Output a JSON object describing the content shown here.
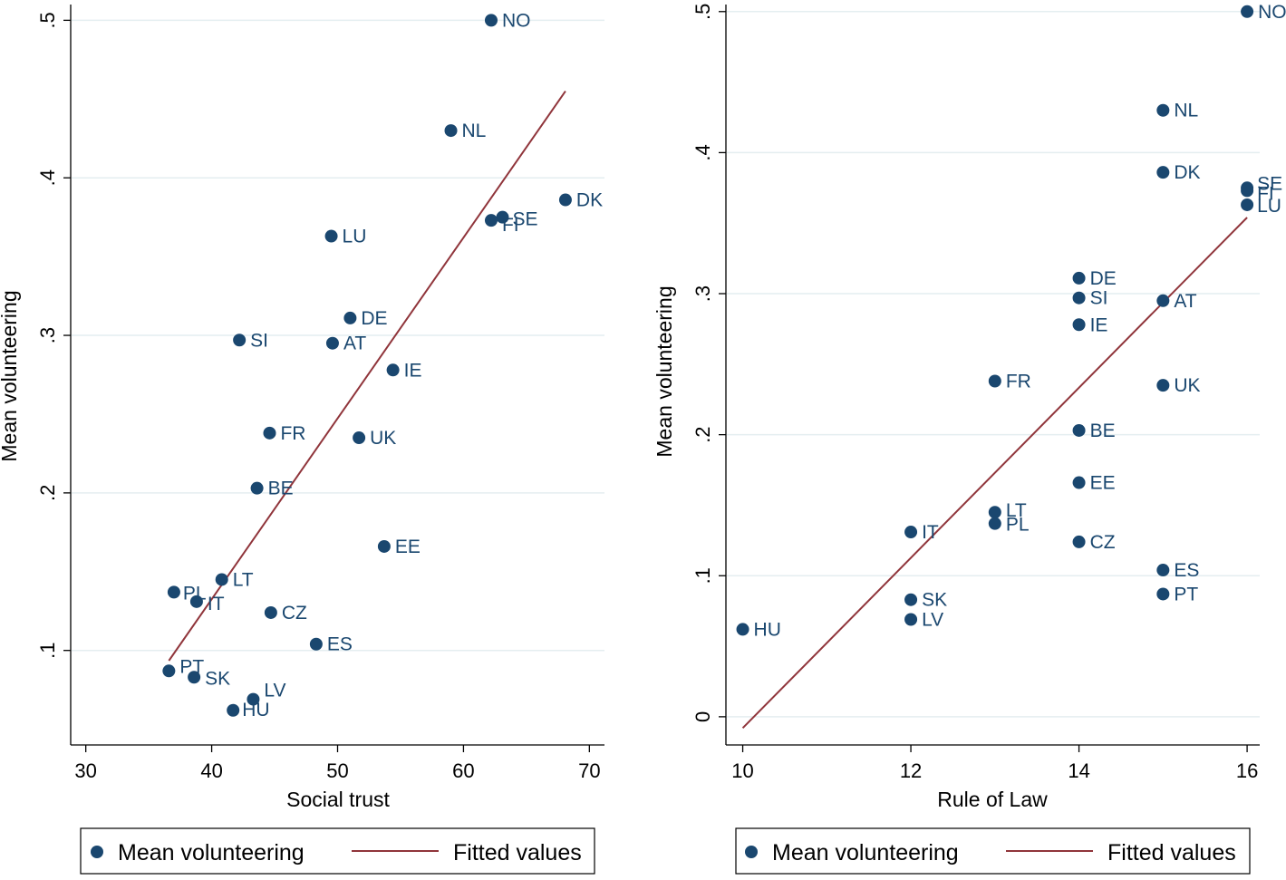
{
  "colors": {
    "marker": "#1a476f",
    "fit_line": "#90353b",
    "grid": "#e4eef0",
    "axis": "#000000",
    "text": "#000000"
  },
  "legend": {
    "markers_label": "Mean volunteering",
    "line_label": "Fitted values"
  },
  "chart_data": [
    {
      "type": "scatter",
      "title": "",
      "xlabel": "Social trust",
      "ylabel": "Mean volunteering",
      "xlim": [
        28.8,
        71.2
      ],
      "ylim": [
        0.04,
        0.51
      ],
      "xticks": [
        30,
        40,
        50,
        60,
        70
      ],
      "xtick_labels": [
        "30",
        "40",
        "50",
        "60",
        "70"
      ],
      "yticks": [
        0.1,
        0.2,
        0.3,
        0.4,
        0.5
      ],
      "ytick_labels": [
        ".1",
        ".2",
        ".3",
        ".4",
        ".5"
      ],
      "grid": true,
      "points": [
        {
          "label": "NO",
          "x": 62.2,
          "y": 0.5
        },
        {
          "label": "NL",
          "x": 59.0,
          "y": 0.43
        },
        {
          "label": "DK",
          "x": 68.1,
          "y": 0.386
        },
        {
          "label": "SE",
          "x": 63.1,
          "y": 0.375
        },
        {
          "label": "FI",
          "x": 62.2,
          "y": 0.373
        },
        {
          "label": "LU",
          "x": 49.5,
          "y": 0.363
        },
        {
          "label": "DE",
          "x": 51.0,
          "y": 0.311
        },
        {
          "label": "SI",
          "x": 42.2,
          "y": 0.297
        },
        {
          "label": "AT",
          "x": 49.6,
          "y": 0.295
        },
        {
          "label": "IE",
          "x": 54.4,
          "y": 0.278
        },
        {
          "label": "FR",
          "x": 44.6,
          "y": 0.238
        },
        {
          "label": "UK",
          "x": 51.7,
          "y": 0.235
        },
        {
          "label": "BE",
          "x": 43.6,
          "y": 0.203
        },
        {
          "label": "EE",
          "x": 53.7,
          "y": 0.166
        },
        {
          "label": "LT",
          "x": 40.8,
          "y": 0.145
        },
        {
          "label": "PL",
          "x": 37.0,
          "y": 0.137
        },
        {
          "label": "IT",
          "x": 38.8,
          "y": 0.131
        },
        {
          "label": "CZ",
          "x": 44.7,
          "y": 0.124
        },
        {
          "label": "ES",
          "x": 48.3,
          "y": 0.104
        },
        {
          "label": "PT",
          "x": 36.6,
          "y": 0.087
        },
        {
          "label": "SK",
          "x": 38.6,
          "y": 0.083
        },
        {
          "label": "LV",
          "x": 43.3,
          "y": 0.069
        },
        {
          "label": "HU",
          "x": 41.7,
          "y": 0.062
        }
      ],
      "fitted_line": {
        "x": [
          36.6,
          68.1
        ],
        "y": [
          0.0935,
          0.455
        ]
      }
    },
    {
      "type": "scatter",
      "title": "",
      "xlabel": "Rule of Law",
      "ylabel": "Mean volunteering",
      "xlim": [
        9.8,
        16.15
      ],
      "ylim": [
        -0.02,
        0.505
      ],
      "xticks": [
        10,
        12,
        14,
        16
      ],
      "xtick_labels": [
        "10",
        "12",
        "14",
        "16"
      ],
      "yticks": [
        0,
        0.1,
        0.2,
        0.3,
        0.4,
        0.5
      ],
      "ytick_labels": [
        "0",
        ".1",
        ".2",
        ".3",
        ".4",
        ".5"
      ],
      "grid": true,
      "points": [
        {
          "label": "NO",
          "x": 16,
          "y": 0.5
        },
        {
          "label": "NL",
          "x": 15,
          "y": 0.43
        },
        {
          "label": "DK",
          "x": 15,
          "y": 0.386
        },
        {
          "label": "SE",
          "x": 16,
          "y": 0.375
        },
        {
          "label": "FI",
          "x": 16,
          "y": 0.373
        },
        {
          "label": "LU",
          "x": 16,
          "y": 0.363
        },
        {
          "label": "DE",
          "x": 14,
          "y": 0.311
        },
        {
          "label": "SI",
          "x": 14,
          "y": 0.297
        },
        {
          "label": "AT",
          "x": 15,
          "y": 0.295
        },
        {
          "label": "IE",
          "x": 14,
          "y": 0.278
        },
        {
          "label": "FR",
          "x": 13,
          "y": 0.238
        },
        {
          "label": "UK",
          "x": 15,
          "y": 0.235
        },
        {
          "label": "BE",
          "x": 14,
          "y": 0.203
        },
        {
          "label": "EE",
          "x": 14,
          "y": 0.166
        },
        {
          "label": "LT",
          "x": 13,
          "y": 0.145
        },
        {
          "label": "PL",
          "x": 13,
          "y": 0.137
        },
        {
          "label": "IT",
          "x": 12,
          "y": 0.131
        },
        {
          "label": "CZ",
          "x": 14,
          "y": 0.124
        },
        {
          "label": "ES",
          "x": 15,
          "y": 0.104
        },
        {
          "label": "PT",
          "x": 15,
          "y": 0.087
        },
        {
          "label": "SK",
          "x": 12,
          "y": 0.083
        },
        {
          "label": "LV",
          "x": 12,
          "y": 0.069
        },
        {
          "label": "HU",
          "x": 10,
          "y": 0.062
        }
      ],
      "fitted_line": {
        "x": [
          10,
          16
        ],
        "y": [
          -0.008,
          0.354
        ]
      }
    }
  ]
}
